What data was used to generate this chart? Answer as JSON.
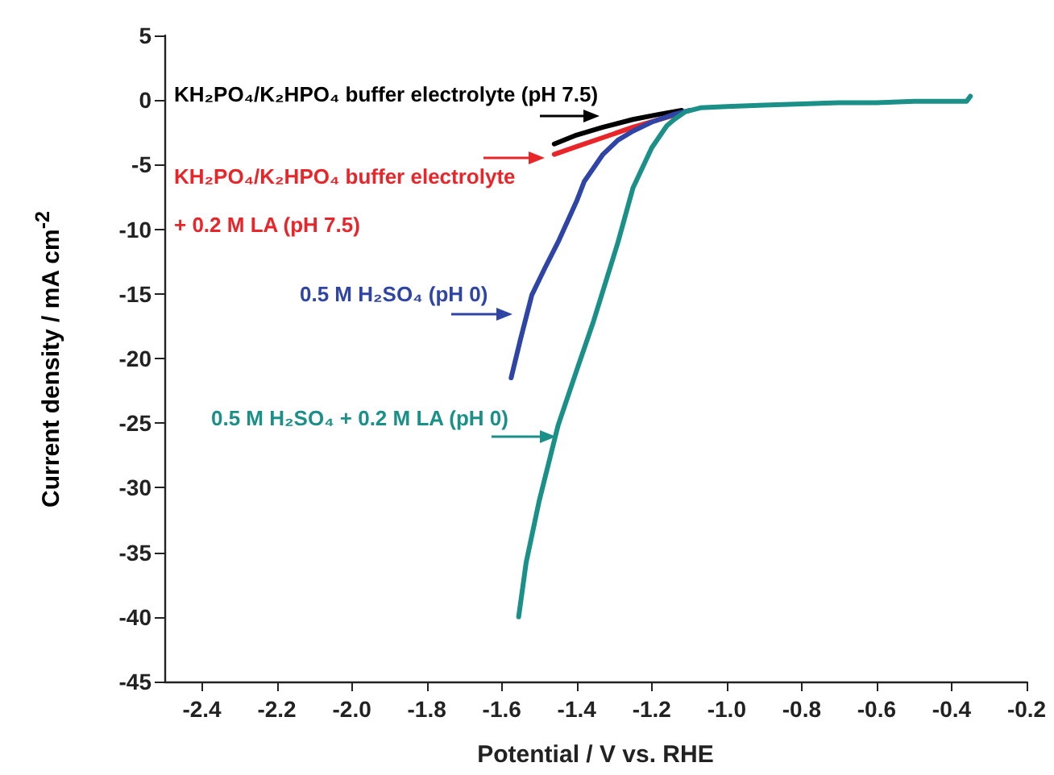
{
  "chart_data": {
    "type": "line",
    "xlabel": "Potential / V vs. RHE",
    "ylabel": "Current density / mA cm$^{-2}$",
    "xlim": [
      -2.5,
      -0.2
    ],
    "xticks": [
      {
        "value": -2.4,
        "label": "-2.4"
      },
      {
        "value": -2.2,
        "label": "-2.2"
      },
      {
        "value": -2.0,
        "label": "-2.0"
      },
      {
        "value": -1.8,
        "label": "-1.8"
      },
      {
        "value": -1.6,
        "label": "-1.6"
      },
      {
        "value": -1.4,
        "label": "-1.4"
      },
      {
        "value": -1.2,
        "label": "-1.2"
      },
      {
        "value": -1.0,
        "label": "-1.0"
      },
      {
        "value": -0.8,
        "label": "-0.8"
      },
      {
        "value": -0.6,
        "label": "-0.6"
      },
      {
        "value": -0.4,
        "label": "-0.4"
      },
      {
        "value": -0.2,
        "label": "-0.2"
      }
    ],
    "ylim": [
      -45,
      5
    ],
    "yticks": [
      -45,
      -40,
      -35,
      -30,
      -25,
      -20,
      -15,
      -10,
      -5,
      0,
      5
    ],
    "marker": "none",
    "line_style": "solid",
    "series": [
      {
        "name": "KH₂PO₄/K₂HPO₄ buffer electrolyte (pH 7.5)",
        "color": "#000000",
        "x": [
          -1.46,
          -1.4,
          -1.33,
          -1.25,
          -1.18,
          -1.12
        ],
        "values": [
          -3.4,
          -2.7,
          -2.1,
          -1.5,
          -1.1,
          -0.8
        ]
      },
      {
        "name": "KH₂PO₄/K₂HPO₄ buffer electrolyte + 0.2 M LA (pH 7.5)",
        "color": "#e8262a",
        "x": [
          -1.46,
          -1.4,
          -1.33,
          -1.25,
          -1.18,
          -1.12
        ],
        "values": [
          -4.2,
          -3.6,
          -2.9,
          -2.1,
          -1.5,
          -1.0
        ]
      },
      {
        "name": "0.5 M H₂SO₄ (pH 0)",
        "color": "#2e45a5",
        "x": [
          -1.575,
          -1.55,
          -1.52,
          -1.485,
          -1.45,
          -1.4,
          -1.38,
          -1.33,
          -1.29,
          -1.25,
          -1.2,
          -1.14,
          -1.1
        ],
        "values": [
          -21.5,
          -18.5,
          -15.1,
          -13.0,
          -11.0,
          -7.8,
          -6.3,
          -4.2,
          -3.1,
          -2.4,
          -1.7,
          -1.1,
          -0.8
        ]
      },
      {
        "name": "0.5 M H₂SO₄ + 0.2 M LA (pH 0)",
        "color": "#1a9089",
        "x": [
          -1.555,
          -1.535,
          -1.5,
          -1.45,
          -1.4,
          -1.355,
          -1.29,
          -1.25,
          -1.2,
          -1.16,
          -1.14,
          -1.11,
          -1.07,
          -1.0,
          -0.9,
          -0.8,
          -0.7,
          -0.6,
          -0.5,
          -0.4,
          -0.36,
          -0.35
        ],
        "values": [
          -40,
          -35.8,
          -31,
          -25.2,
          -20.9,
          -17.1,
          -11.0,
          -6.8,
          -3.7,
          -2.0,
          -1.5,
          -0.9,
          -0.6,
          -0.5,
          -0.4,
          -0.3,
          -0.2,
          -0.2,
          -0.1,
          -0.1,
          -0.1,
          0.3
        ]
      }
    ]
  }
}
